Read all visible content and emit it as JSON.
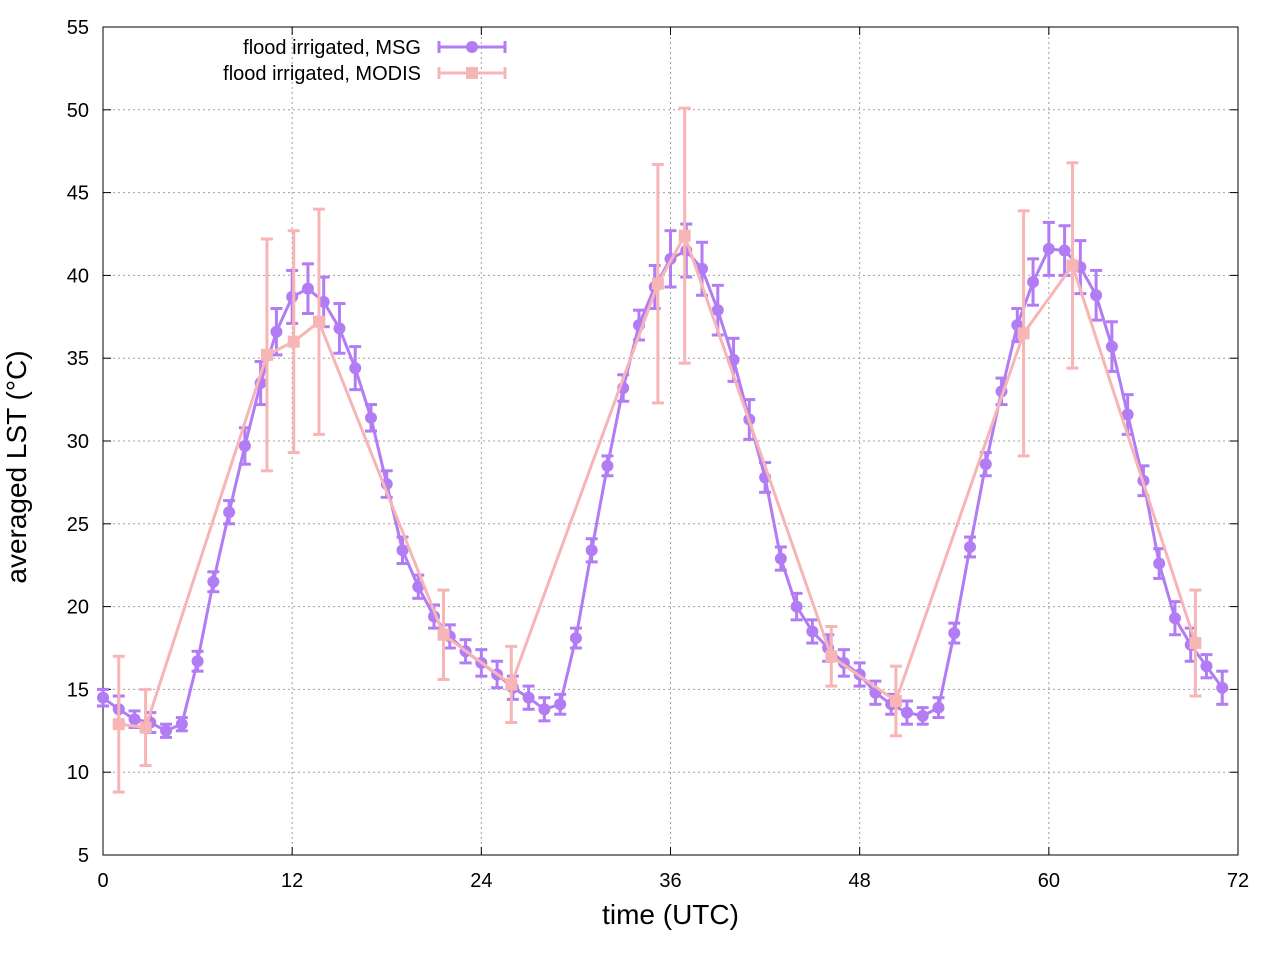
{
  "chart_data": {
    "type": "line",
    "title": "",
    "xlabel": "time (UTC)",
    "ylabel": "averaged LST (°C)",
    "xlim": [
      0,
      72
    ],
    "ylim": [
      5,
      55
    ],
    "xticks": [
      0,
      12,
      24,
      36,
      48,
      60,
      72
    ],
    "yticks": [
      5,
      10,
      15,
      20,
      25,
      30,
      35,
      40,
      45,
      50,
      55
    ],
    "grid": true,
    "legend_position": "top-center",
    "series": [
      {
        "name": "flood irrigated, MSG",
        "color": "#b27cf5",
        "marker": "circle",
        "x": [
          0,
          1,
          2,
          3,
          4,
          5,
          6,
          7,
          8,
          9,
          10,
          11,
          12,
          13,
          14,
          15,
          16,
          17,
          18,
          19,
          20,
          21,
          22,
          23,
          24,
          25,
          26,
          27,
          28,
          29,
          30,
          31,
          32,
          33,
          34,
          35,
          36,
          37,
          38,
          39,
          40,
          41,
          42,
          43,
          44,
          45,
          46,
          47,
          48,
          49,
          50,
          51,
          52,
          53,
          54,
          55,
          56,
          57,
          58,
          59,
          60,
          61,
          62,
          63,
          64,
          65,
          66,
          67,
          68,
          69,
          70,
          71
        ],
        "y": [
          14.5,
          13.8,
          13.2,
          13.0,
          12.5,
          12.9,
          16.7,
          21.5,
          25.7,
          29.7,
          33.5,
          36.6,
          38.7,
          39.2,
          38.4,
          36.8,
          34.4,
          31.4,
          27.4,
          23.4,
          21.2,
          19.4,
          18.2,
          17.3,
          16.6,
          15.9,
          15.1,
          14.5,
          13.8,
          14.1,
          18.1,
          23.4,
          28.5,
          33.2,
          37.0,
          39.3,
          41.0,
          41.5,
          40.4,
          37.9,
          34.9,
          31.3,
          27.8,
          22.9,
          20.0,
          18.5,
          17.5,
          16.6,
          15.9,
          14.8,
          14.1,
          13.6,
          13.4,
          13.9,
          18.4,
          23.6,
          28.6,
          33.0,
          37.0,
          39.6,
          41.6,
          41.5,
          40.5,
          38.8,
          35.7,
          31.6,
          27.6,
          22.6,
          19.3,
          17.7,
          16.4,
          15.1
        ],
        "yerr": [
          0.5,
          0.8,
          0.5,
          0.6,
          0.4,
          0.4,
          0.6,
          0.6,
          0.7,
          1.1,
          1.3,
          1.4,
          1.6,
          1.5,
          1.5,
          1.5,
          1.3,
          0.8,
          0.8,
          0.8,
          0.7,
          0.7,
          0.7,
          0.7,
          0.8,
          0.8,
          0.7,
          0.7,
          0.7,
          0.6,
          0.6,
          0.7,
          0.6,
          0.8,
          0.9,
          1.3,
          1.7,
          1.6,
          1.6,
          1.5,
          1.3,
          1.2,
          0.9,
          0.7,
          0.8,
          0.7,
          0.8,
          0.8,
          0.7,
          0.7,
          0.6,
          0.7,
          0.5,
          0.6,
          0.6,
          0.6,
          0.7,
          0.8,
          1.0,
          1.4,
          1.6,
          1.5,
          1.6,
          1.5,
          1.5,
          1.2,
          0.9,
          0.9,
          1.0,
          1.0,
          0.7,
          1.0
        ]
      },
      {
        "name": "flood irrigated, MODIS",
        "color": "#f7b5b5",
        "marker": "square",
        "x": [
          1.0,
          2.7,
          10.4,
          12.1,
          13.7,
          21.6,
          25.9,
          35.2,
          36.9,
          46.2,
          50.3,
          58.4,
          61.5,
          69.3
        ],
        "y": [
          12.9,
          12.7,
          35.2,
          36.0,
          37.2,
          18.3,
          15.3,
          39.5,
          42.4,
          17.0,
          14.3,
          36.5,
          40.6,
          17.8
        ],
        "yerr": [
          4.1,
          2.3,
          7.0,
          6.7,
          6.8,
          2.7,
          2.3,
          7.2,
          7.7,
          1.8,
          2.1,
          7.4,
          6.2,
          3.2
        ]
      }
    ]
  }
}
